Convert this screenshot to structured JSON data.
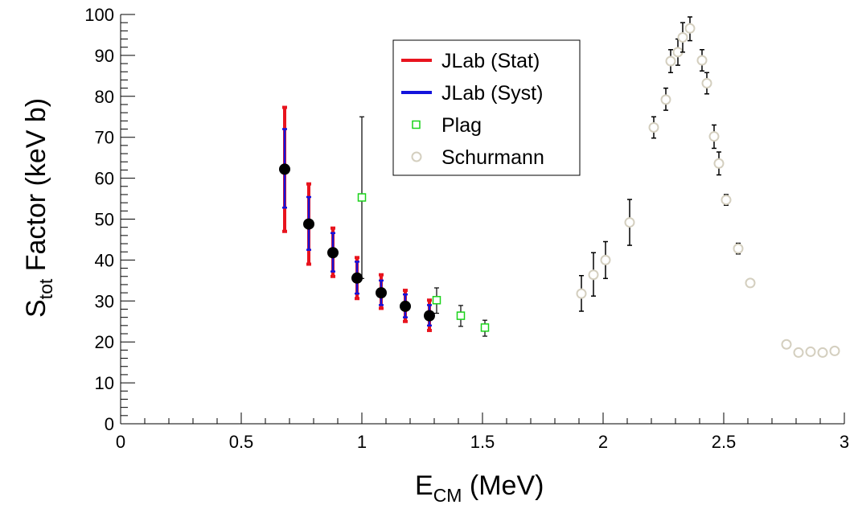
{
  "chart_data": {
    "type": "scatter",
    "title": "",
    "xlabel": {
      "main": "E",
      "sub": "CM",
      "rest": " (MeV)"
    },
    "ylabel": {
      "main": "S",
      "sub": "tot",
      "rest": " Factor (keV b)"
    },
    "xlim": [
      0,
      3
    ],
    "ylim": [
      0,
      100
    ],
    "x_major_ticks": [
      0,
      0.5,
      1,
      1.5,
      2,
      2.5,
      3
    ],
    "x_tick_labels": [
      "0",
      "0.5",
      "1",
      "1.5",
      "2",
      "2.5",
      "3"
    ],
    "y_major_ticks": [
      0,
      10,
      20,
      30,
      40,
      50,
      60,
      70,
      80,
      90,
      100
    ],
    "y_tick_labels": [
      "0",
      "10",
      "20",
      "30",
      "40",
      "50",
      "60",
      "70",
      "80",
      "90",
      "100"
    ],
    "grid": false,
    "legend_position": "top-center",
    "legend": [
      {
        "label": "JLab (Stat)",
        "symbol": "line",
        "color": "#e8141e"
      },
      {
        "label": "JLab (Syst)",
        "symbol": "line",
        "color": "#1414dc"
      },
      {
        "label": "Plag",
        "symbol": "open-square",
        "color": "#19d219"
      },
      {
        "label": "Schurmann",
        "symbol": "open-circle",
        "color": "#d4cfbf"
      }
    ],
    "series": [
      {
        "name": "JLab",
        "marker": "filled-circle",
        "color": "#000000",
        "stat_color": "#e8141e",
        "syst_color": "#1414dc",
        "points": [
          {
            "x": 0.68,
            "y": 62.2,
            "stat_lo": 47.0,
            "stat_hi": 77.3,
            "syst_lo": 52.8,
            "syst_hi": 72.0
          },
          {
            "x": 0.78,
            "y": 48.8,
            "stat_lo": 39.0,
            "stat_hi": 58.6,
            "syst_lo": 42.5,
            "syst_hi": 55.4
          },
          {
            "x": 0.88,
            "y": 41.8,
            "stat_lo": 36.0,
            "stat_hi": 47.8,
            "syst_lo": 37.2,
            "syst_hi": 46.6
          },
          {
            "x": 0.98,
            "y": 35.6,
            "stat_lo": 30.6,
            "stat_hi": 40.6,
            "syst_lo": 31.8,
            "syst_hi": 39.6
          },
          {
            "x": 1.08,
            "y": 32.0,
            "stat_lo": 28.2,
            "stat_hi": 36.4,
            "syst_lo": 29.0,
            "syst_hi": 35.0
          },
          {
            "x": 1.18,
            "y": 28.7,
            "stat_lo": 25.0,
            "stat_hi": 32.6,
            "syst_lo": 26.0,
            "syst_hi": 31.6
          },
          {
            "x": 1.28,
            "y": 26.4,
            "stat_lo": 22.8,
            "stat_hi": 30.2,
            "syst_lo": 24.0,
            "syst_hi": 29.0
          }
        ]
      },
      {
        "name": "Plag",
        "marker": "open-square",
        "color": "#19d219",
        "points": [
          {
            "x": 1.0,
            "y": 55.3,
            "lo": 35.5,
            "hi": 75.0
          },
          {
            "x": 1.31,
            "y": 30.2,
            "lo": 27.0,
            "hi": 33.2
          },
          {
            "x": 1.41,
            "y": 26.4,
            "lo": 23.8,
            "hi": 28.9
          },
          {
            "x": 1.51,
            "y": 23.5,
            "lo": 21.4,
            "hi": 25.3
          }
        ]
      },
      {
        "name": "Schurmann",
        "marker": "open-circle",
        "color": "#d4cfbf",
        "points": [
          {
            "x": 1.91,
            "y": 31.8,
            "lo": 27.5,
            "hi": 36.2
          },
          {
            "x": 1.96,
            "y": 36.4,
            "lo": 31.2,
            "hi": 41.8
          },
          {
            "x": 2.01,
            "y": 40.0,
            "lo": 35.5,
            "hi": 44.5
          },
          {
            "x": 2.11,
            "y": 49.2,
            "lo": 43.6,
            "hi": 54.8
          },
          {
            "x": 2.21,
            "y": 72.4,
            "lo": 69.8,
            "hi": 75.0
          },
          {
            "x": 2.26,
            "y": 79.2,
            "lo": 76.6,
            "hi": 82.0
          },
          {
            "x": 2.28,
            "y": 88.6,
            "lo": 85.8,
            "hi": 91.4
          },
          {
            "x": 2.31,
            "y": 90.8,
            "lo": 87.6,
            "hi": 94.0
          },
          {
            "x": 2.33,
            "y": 94.4,
            "lo": 90.8,
            "hi": 98.0
          },
          {
            "x": 2.36,
            "y": 96.6,
            "lo": 93.6,
            "hi": 99.4
          },
          {
            "x": 2.41,
            "y": 88.8,
            "lo": 86.2,
            "hi": 91.4
          },
          {
            "x": 2.43,
            "y": 83.2,
            "lo": 80.6,
            "hi": 85.8
          },
          {
            "x": 2.46,
            "y": 70.2,
            "lo": 67.3,
            "hi": 73.0
          },
          {
            "x": 2.48,
            "y": 63.6,
            "lo": 60.8,
            "hi": 66.4
          },
          {
            "x": 2.51,
            "y": 54.7,
            "lo": 53.4,
            "hi": 56.0
          },
          {
            "x": 2.56,
            "y": 42.8,
            "lo": 41.5,
            "hi": 44.1
          },
          {
            "x": 2.61,
            "y": 34.4,
            "lo": 34.4,
            "hi": 34.4
          },
          {
            "x": 2.76,
            "y": 19.4,
            "lo": 19.4,
            "hi": 19.4
          },
          {
            "x": 2.81,
            "y": 17.4,
            "lo": 17.4,
            "hi": 17.4
          },
          {
            "x": 2.86,
            "y": 17.6,
            "lo": 17.6,
            "hi": 17.6
          },
          {
            "x": 2.91,
            "y": 17.4,
            "lo": 17.4,
            "hi": 17.4
          },
          {
            "x": 2.96,
            "y": 17.8,
            "lo": 17.8,
            "hi": 17.8
          }
        ]
      }
    ]
  }
}
